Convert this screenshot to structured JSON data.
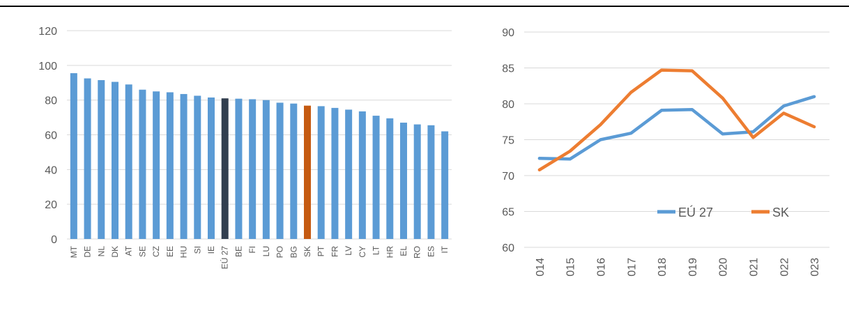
{
  "chart_data": [
    {
      "type": "bar",
      "title": "",
      "xlabel": "",
      "ylabel": "",
      "ylim": [
        0,
        120
      ],
      "yticks": [
        0,
        20,
        40,
        60,
        80,
        100,
        120
      ],
      "grid": true,
      "categories": [
        "MT",
        "DE",
        "NL",
        "DK",
        "AT",
        "SE",
        "CZ",
        "EE",
        "HU",
        "SI",
        "IE",
        "EÚ 27",
        "BE",
        "FI",
        "LU",
        "PO",
        "BG",
        "SK",
        "PT",
        "FR",
        "LV",
        "CY",
        "LT",
        "HR",
        "EL",
        "RO",
        "ES",
        "IT"
      ],
      "values": [
        95.5,
        92.5,
        91.5,
        90.5,
        89,
        86,
        85,
        84.5,
        83.5,
        82.5,
        81.5,
        81,
        80.8,
        80.5,
        80,
        78.5,
        78,
        76.8,
        76.5,
        75.5,
        74.5,
        73.5,
        71,
        69.5,
        67,
        66,
        65.5,
        62
      ],
      "colors": {
        "default": "#5b9bd5",
        "EÚ 27": "#323f4f",
        "SK": "#c55a11"
      }
    },
    {
      "type": "line",
      "title": "",
      "xlabel": "",
      "ylabel": "",
      "ylim": [
        60,
        90
      ],
      "yticks": [
        60,
        65,
        70,
        75,
        80,
        85,
        90
      ],
      "grid": true,
      "legend": "inside-bottom",
      "x": [
        "014",
        "015",
        "016",
        "017",
        "018",
        "019",
        "020",
        "021",
        "022",
        "023"
      ],
      "series": [
        {
          "name": "EÚ 27",
          "color": "#5b9bd5",
          "values": [
            72.4,
            72.3,
            75.0,
            75.9,
            79.1,
            79.2,
            75.8,
            76.1,
            79.7,
            81.0
          ]
        },
        {
          "name": "SK",
          "color": "#ed7d31",
          "values": [
            70.8,
            73.4,
            77.1,
            81.6,
            84.7,
            84.6,
            80.8,
            75.3,
            78.7,
            76.8
          ]
        }
      ]
    }
  ]
}
